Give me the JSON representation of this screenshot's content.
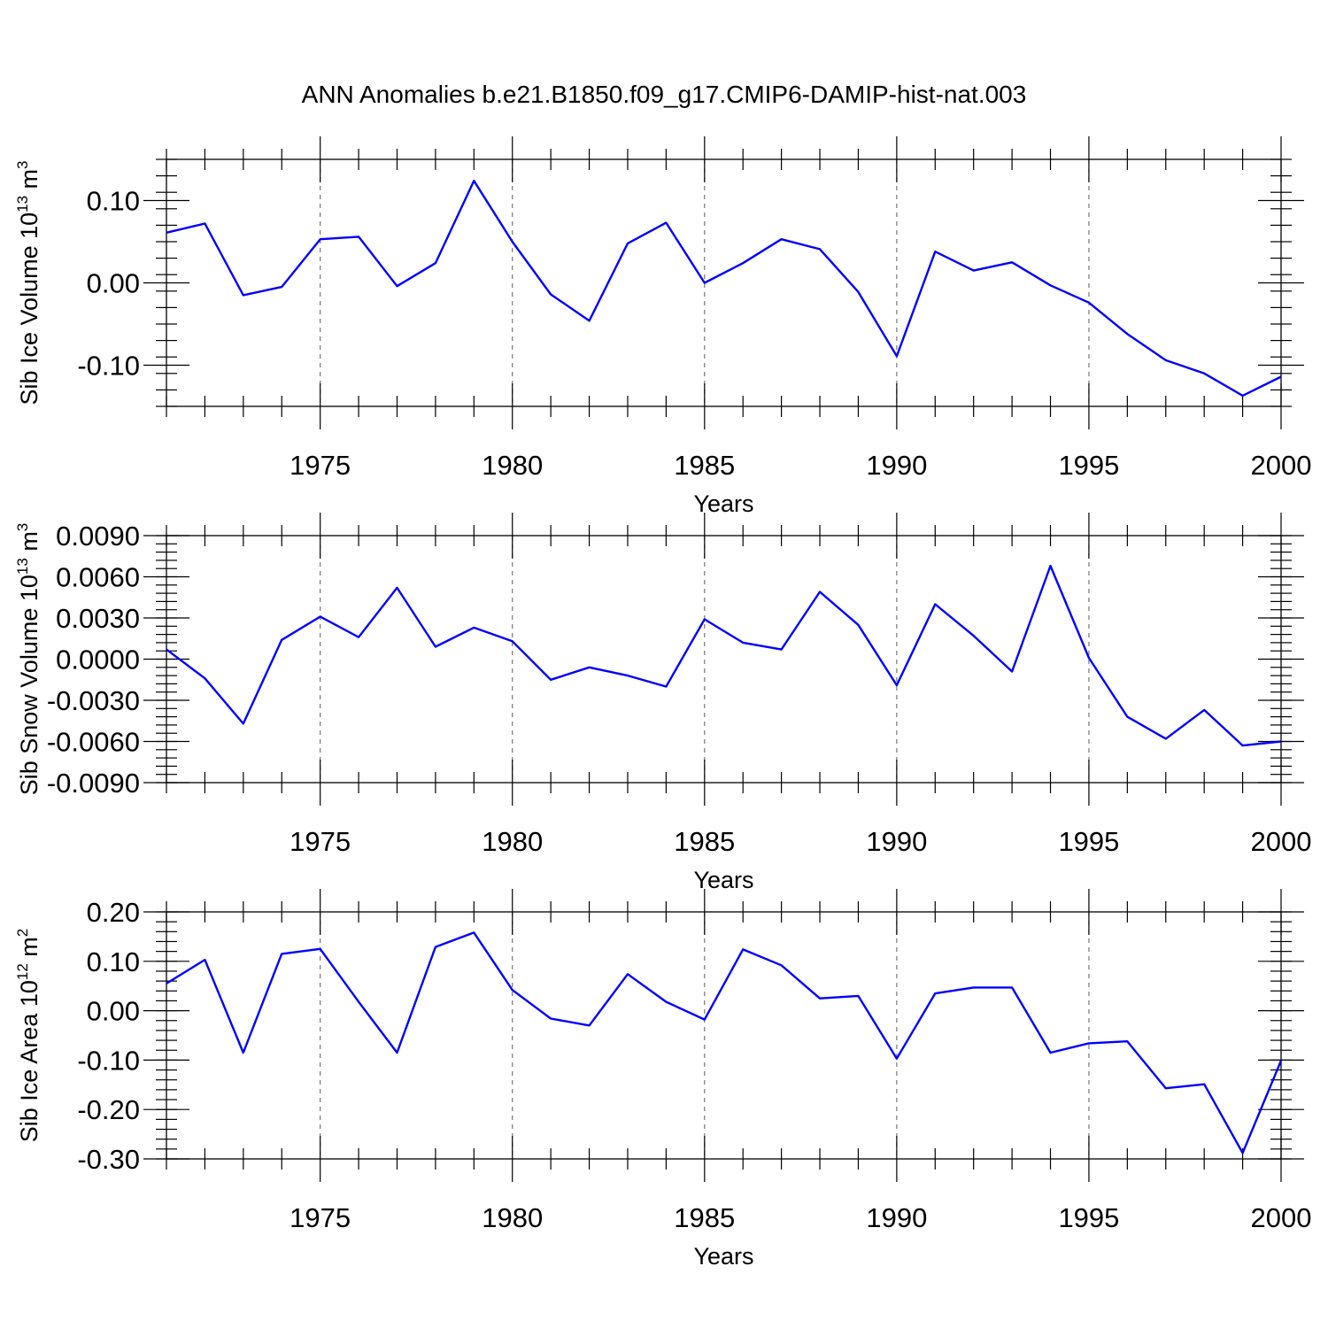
{
  "title": "ANN Anomalies b.e21.B1850.f09_g17.CMIP6-DAMIP-hist-nat.003",
  "colors": {
    "series": "#0000ff",
    "grid": "#777777",
    "frame": "#000000"
  },
  "chart_data": [
    {
      "type": "line",
      "title": "ANN Anomalies b.e21.B1850.f09_g17.CMIP6-DAMIP-hist-nat.003",
      "ylabel": "Sib Ice Volume 10^13 m^3",
      "ylabel_parts": {
        "main": "Sib Ice Volume 10",
        "exp1": "13",
        "mid": " m",
        "exp2": "3"
      },
      "xlabel": "Years",
      "xlim": [
        1971,
        2000
      ],
      "ylim": [
        -0.15,
        0.15
      ],
      "xticks": [
        1975,
        1980,
        1985,
        1990,
        1995,
        2000
      ],
      "yticks": [
        0.1,
        0.0,
        -0.1
      ],
      "ytick_labels": [
        "0.10",
        "0.00",
        "-0.10"
      ],
      "y_minor_step": 0.02,
      "grid": "vertical dashed at major x ticks",
      "x": [
        1971,
        1972,
        1973,
        1974,
        1975,
        1976,
        1977,
        1978,
        1979,
        1980,
        1981,
        1982,
        1983,
        1984,
        1985,
        1986,
        1987,
        1988,
        1989,
        1990,
        1991,
        1992,
        1993,
        1994,
        1995,
        1996,
        1997,
        1998,
        1999,
        2000
      ],
      "series": [
        {
          "values": [
            0.061,
            0.072,
            -0.015,
            -0.005,
            0.053,
            0.056,
            -0.004,
            0.024,
            0.124,
            0.05,
            -0.014,
            -0.046,
            0.048,
            0.073,
            0.0,
            0.024,
            0.053,
            0.041,
            -0.011,
            -0.089,
            0.038,
            0.015,
            0.025,
            -0.003,
            -0.024,
            -0.062,
            -0.094,
            -0.11,
            -0.137,
            -0.114
          ]
        }
      ]
    },
    {
      "type": "line",
      "ylabel": "Sib Snow Volume 10^13 m^3",
      "ylabel_parts": {
        "main": "Sib Snow Volume 10",
        "exp1": "13",
        "mid": " m",
        "exp2": "3"
      },
      "xlabel": "Years",
      "xlim": [
        1971,
        2000
      ],
      "ylim": [
        -0.009,
        0.009
      ],
      "xticks": [
        1975,
        1980,
        1985,
        1990,
        1995,
        2000
      ],
      "yticks": [
        0.009,
        0.006,
        0.003,
        0.0,
        -0.003,
        -0.006,
        -0.009
      ],
      "ytick_labels": [
        "0.0090",
        "0.0060",
        "0.0030",
        "0.0000",
        "-0.0030",
        "-0.0060",
        "-0.0090"
      ],
      "y_minor_step": 0.0006,
      "grid": "vertical dashed at major x ticks",
      "x": [
        1971,
        1972,
        1973,
        1974,
        1975,
        1976,
        1977,
        1978,
        1979,
        1980,
        1981,
        1982,
        1983,
        1984,
        1985,
        1986,
        1987,
        1988,
        1989,
        1990,
        1991,
        1992,
        1993,
        1994,
        1995,
        1996,
        1997,
        1998,
        1999,
        2000
      ],
      "series": [
        {
          "values": [
            0.0007,
            -0.0014,
            -0.0047,
            0.0014,
            0.0031,
            0.0016,
            0.0052,
            0.0009,
            0.0023,
            0.0013,
            -0.0015,
            -0.0006,
            -0.0012,
            -0.002,
            0.0029,
            0.0012,
            0.0007,
            0.0049,
            0.0025,
            -0.0019,
            0.004,
            0.0017,
            -0.0009,
            0.0068,
            0.0001,
            -0.0042,
            -0.0058,
            -0.0037,
            -0.0063,
            -0.006
          ]
        }
      ]
    },
    {
      "type": "line",
      "ylabel": "Sib Ice Area 10^12 m^2",
      "ylabel_parts": {
        "main": "Sib Ice Area 10",
        "exp1": "12",
        "mid": " m",
        "exp2": "2"
      },
      "xlabel": "Years",
      "xlim": [
        1971,
        2000
      ],
      "ylim": [
        -0.3,
        0.2
      ],
      "xticks": [
        1975,
        1980,
        1985,
        1990,
        1995,
        2000
      ],
      "yticks": [
        0.2,
        0.1,
        0.0,
        -0.1,
        -0.2,
        -0.3
      ],
      "ytick_labels": [
        "0.20",
        "0.10",
        "0.00",
        "-0.10",
        "-0.20",
        "-0.30"
      ],
      "y_minor_step": 0.02,
      "grid": "vertical dashed at major x ticks",
      "x": [
        1971,
        1972,
        1973,
        1974,
        1975,
        1976,
        1977,
        1978,
        1979,
        1980,
        1981,
        1982,
        1983,
        1984,
        1985,
        1986,
        1987,
        1988,
        1989,
        1990,
        1991,
        1992,
        1993,
        1994,
        1995,
        1996,
        1997,
        1998,
        1999,
        2000
      ],
      "series": [
        {
          "values": [
            0.055,
            0.103,
            -0.085,
            0.115,
            0.125,
            0.018,
            -0.085,
            0.129,
            0.158,
            0.042,
            -0.016,
            -0.03,
            0.074,
            0.018,
            -0.018,
            0.124,
            0.092,
            0.025,
            0.03,
            -0.097,
            0.035,
            0.047,
            0.047,
            -0.085,
            -0.066,
            -0.062,
            -0.157,
            -0.149,
            -0.288,
            -0.101
          ]
        }
      ]
    }
  ]
}
